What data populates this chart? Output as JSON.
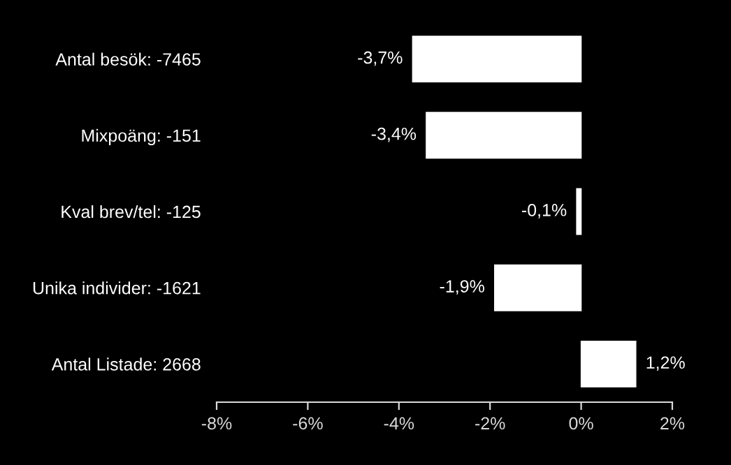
{
  "chart_data": {
    "type": "bar",
    "orientation": "horizontal",
    "categories": [
      "Antal besök: -7465",
      "Mixpoäng: -151",
      "Kval brev/tel: -125",
      "Unika individer: -1621",
      "Antal Listade: 2668"
    ],
    "values": [
      -3.7,
      -3.4,
      -0.1,
      -1.9,
      1.2
    ],
    "value_labels": [
      "-3,7%",
      "-3,4%",
      "-0,1%",
      "-1,9%",
      "1,2%"
    ],
    "color": "#ffffff",
    "xlim": [
      -8,
      2
    ],
    "xticks": [
      {
        "value": -8,
        "label": "-8%"
      },
      {
        "value": -6,
        "label": "-6%"
      },
      {
        "value": -4,
        "label": "-4%"
      },
      {
        "value": -2,
        "label": "-2%"
      },
      {
        "value": 0,
        "label": "0%"
      },
      {
        "value": 2,
        "label": "2%"
      }
    ],
    "grid": false,
    "legend": false
  }
}
